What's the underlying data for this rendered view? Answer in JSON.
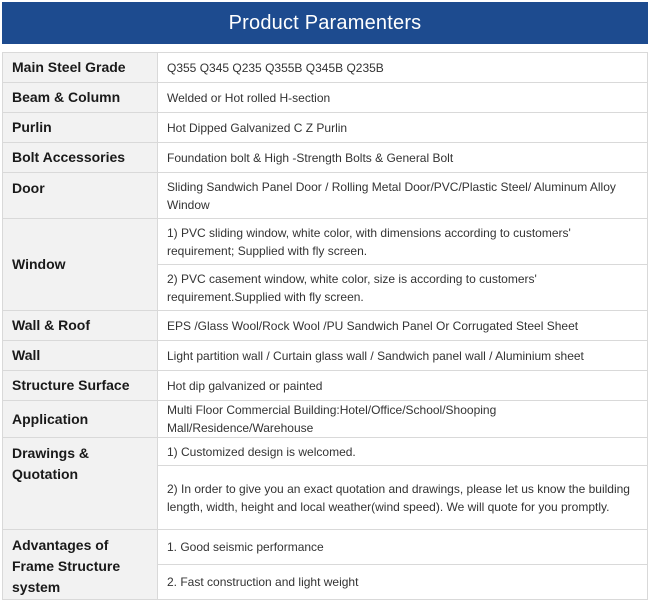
{
  "header": {
    "title": "Product Paramenters"
  },
  "rows": [
    {
      "label": "Main Steel Grade",
      "values": [
        "Q355 Q345 Q235 Q355B Q345B Q235B"
      ]
    },
    {
      "label": "Beam & Column",
      "values": [
        "Welded or Hot rolled H-section"
      ]
    },
    {
      "label": "Purlin",
      "values": [
        "Hot Dipped Galvanized C Z Purlin"
      ]
    },
    {
      "label": "Bolt Accessories",
      "values": [
        "Foundation bolt & High -Strength Bolts & General Bolt"
      ]
    },
    {
      "label": "Door",
      "values": [
        "Sliding Sandwich Panel Door / Rolling Metal Door/PVC/Plastic Steel/ Aluminum Alloy Window"
      ]
    },
    {
      "label": "Window",
      "values": [
        "1) PVC sliding window, white color, with dimensions according to customers' requirement; Supplied with fly screen.",
        "2) PVC casement window, white color, size is according to customers' requirement.Supplied with fly screen."
      ]
    },
    {
      "label": "Wall & Roof",
      "values": [
        "EPS /Glass Wool/Rock Wool /PU Sandwich Panel Or Corrugated Steel Sheet"
      ]
    },
    {
      "label": "Wall",
      "values": [
        "Light partition wall / Curtain glass wall / Sandwich panel wall / Aluminium sheet"
      ]
    },
    {
      "label": "Structure Surface",
      "values": [
        "Hot dip galvanized or painted"
      ]
    },
    {
      "label": "Application",
      "values": [
        "Multi Floor Commercial Building:Hotel/Office/School/Shooping Mall/Residence/Warehouse"
      ]
    },
    {
      "label": "Drawings & Quotation",
      "values": [
        "1) Customized design is welcomed.",
        "2) In order to give you an exact quotation and drawings, please let us know the building length, width, height and local weather(wind speed). We will quote for you promptly."
      ]
    },
    {
      "label": "Advantages of Frame Structure system",
      "values": [
        "1. Good seismic performance",
        "2. Fast construction and light weight"
      ]
    }
  ]
}
